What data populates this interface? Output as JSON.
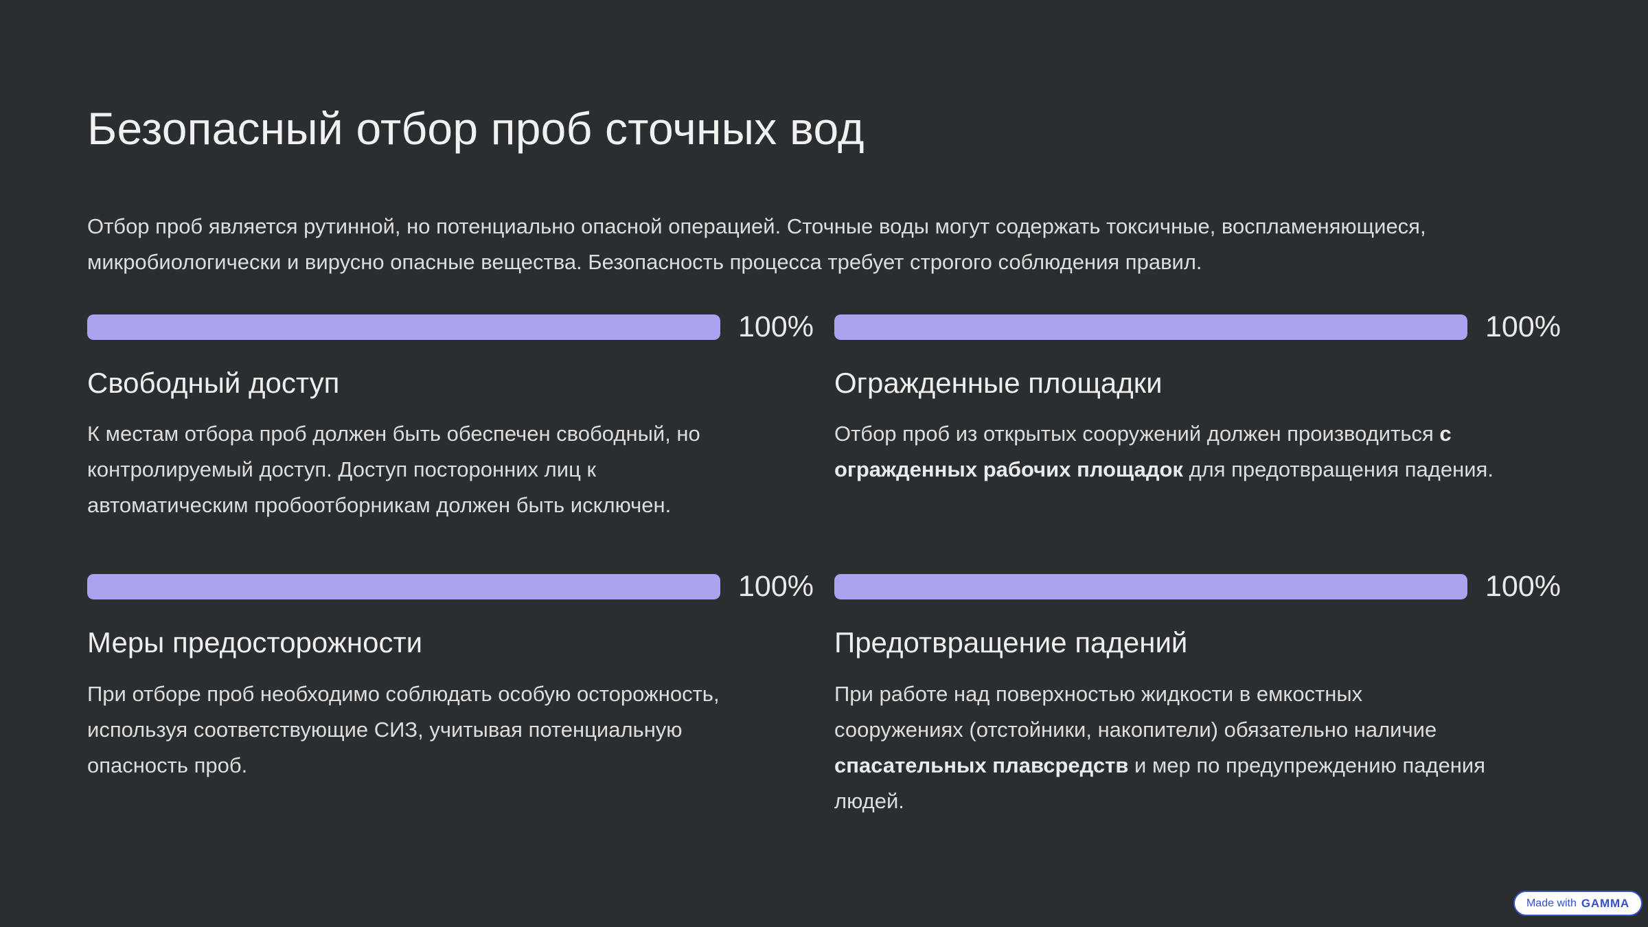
{
  "page": {
    "title": "Безопасный отбор проб сточных вод",
    "intro": "Отбор проб является рутинной, но потенциально опасной операцией. Сточные воды могут содержать токсичные, воспламеняющиеся, микробиологически и вирусно опасные вещества. Безопасность процесса требует строгого соблюдения правил."
  },
  "colors": {
    "background": "#2B2E30",
    "progress_bar": "#AAA3EF",
    "badge_blue": "#3452C8"
  },
  "cards": [
    {
      "progress_percent": 100,
      "progress_label": "100%",
      "title": "Свободный доступ",
      "body": [
        {
          "text": "К местам отбора проб должен быть обеспечен свободный, но контролируемый доступ. Доступ посторонних лиц к автоматическим пробоотборникам должен быть исключен.",
          "bold": false
        }
      ]
    },
    {
      "progress_percent": 100,
      "progress_label": "100%",
      "title": "Огражденные площадки",
      "body": [
        {
          "text": "Отбор проб из открытых сооружений должен производиться ",
          "bold": false
        },
        {
          "text": "с огражденных рабочих площадок",
          "bold": true
        },
        {
          "text": " для предотвращения падения.",
          "bold": false
        }
      ]
    },
    {
      "progress_percent": 100,
      "progress_label": "100%",
      "title": "Меры предосторожности",
      "body": [
        {
          "text": "При отборе проб необходимо соблюдать особую осторожность, используя соответствующие СИЗ, учитывая потенциальную опасность проб.",
          "bold": false
        }
      ]
    },
    {
      "progress_percent": 100,
      "progress_label": "100%",
      "title": "Предотвращение падений",
      "body": [
        {
          "text": "При работе над поверхностью жидкости в емкостных сооружениях (отстойники, накопители) обязательно наличие ",
          "bold": false
        },
        {
          "text": "спасательных плавсредств",
          "bold": true
        },
        {
          "text": " и мер по предупреждению падения людей.",
          "bold": false
        }
      ]
    }
  ],
  "badge": {
    "prefix": "Made with",
    "brand": "GAMMA"
  }
}
